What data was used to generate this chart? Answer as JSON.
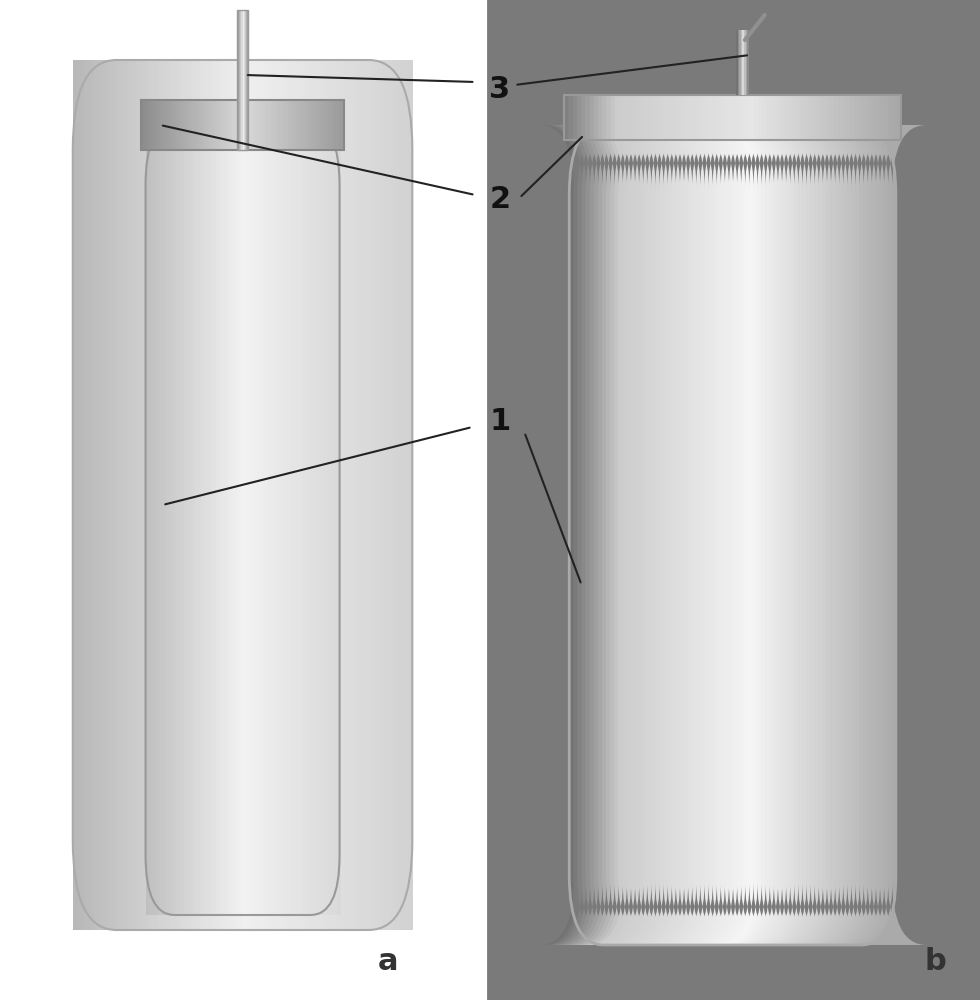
{
  "fig_width": 9.8,
  "fig_height": 10.0,
  "dpi": 100,
  "bg_color_left": "#ebebeb",
  "bg_color_right": "#808080",
  "label_a": "a",
  "label_b": "b",
  "label_font_size": 22,
  "annotation_font_size": 22,
  "line_color": "#222222",
  "line_width": 1.5,
  "panel_divider": 0.495
}
